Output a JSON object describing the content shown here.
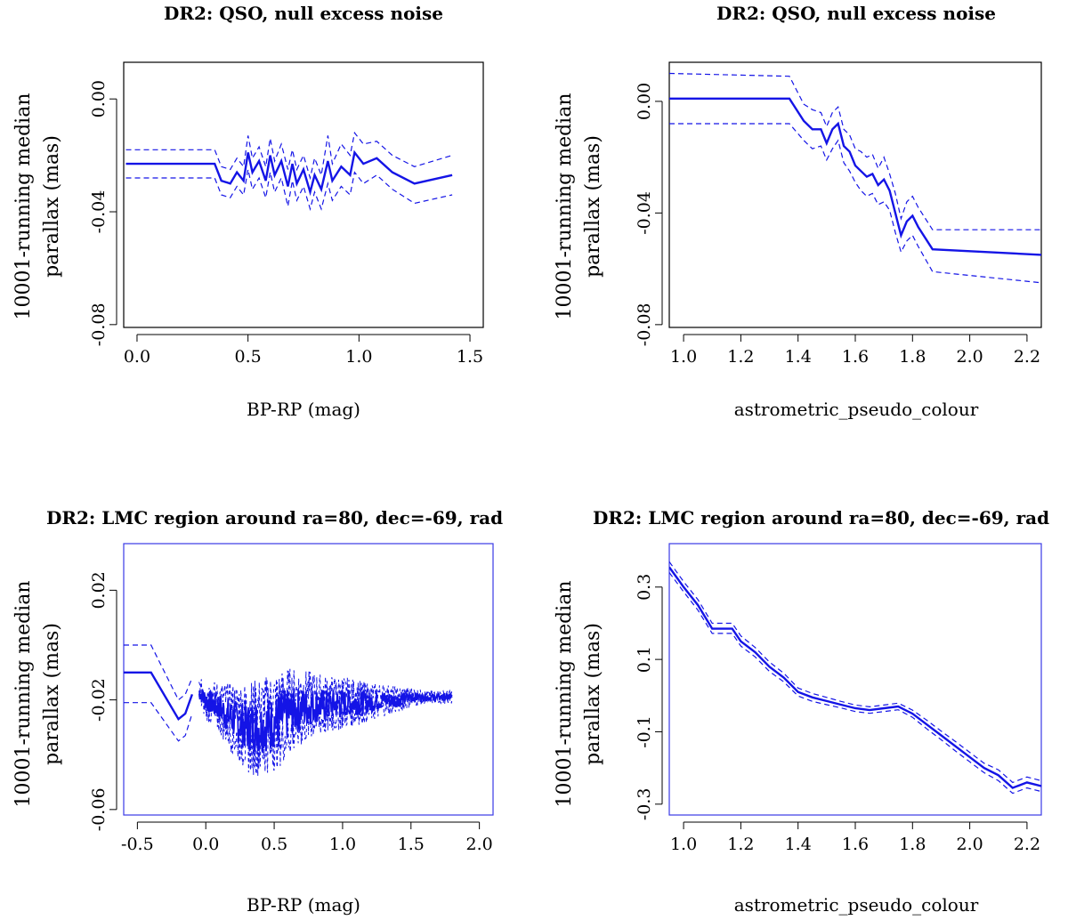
{
  "colors": {
    "series": "#1414e6",
    "frame_black": "#000000",
    "frame_blue": "#3a3ae6"
  },
  "chart_data": [
    {
      "type": "line",
      "title": "DR2: QSO, null excess noise",
      "xlabel": "BP-RP (mag)",
      "ylabel": [
        "10001-running median",
        "parallax (mas)"
      ],
      "xticks": [
        0.0,
        0.5,
        1.0,
        1.5
      ],
      "xtick_labels": [
        "0.0",
        "0.5",
        "1.0",
        "1.5"
      ],
      "yticks": [
        0.0,
        -0.04,
        -0.08
      ],
      "ytick_labels": [
        "0.00",
        "-0.04",
        "-0.08"
      ],
      "xlim": [
        -0.06,
        1.56
      ],
      "ylim": [
        -0.081,
        0.013
      ],
      "frame_color": "black",
      "series": [
        {
          "name": "median",
          "x": [
            -0.05,
            0.35,
            0.38,
            0.42,
            0.45,
            0.48,
            0.5,
            0.52,
            0.55,
            0.58,
            0.6,
            0.62,
            0.65,
            0.68,
            0.7,
            0.72,
            0.75,
            0.78,
            0.8,
            0.83,
            0.86,
            0.88,
            0.92,
            0.96,
            0.98,
            1.02,
            1.08,
            1.15,
            1.25,
            1.42
          ],
          "y": [
            -0.023,
            -0.023,
            -0.029,
            -0.03,
            -0.026,
            -0.029,
            -0.019,
            -0.026,
            -0.022,
            -0.029,
            -0.02,
            -0.027,
            -0.022,
            -0.031,
            -0.023,
            -0.03,
            -0.025,
            -0.033,
            -0.027,
            -0.032,
            -0.022,
            -0.029,
            -0.024,
            -0.027,
            -0.019,
            -0.023,
            -0.021,
            -0.026,
            -0.03,
            -0.027
          ]
        },
        {
          "name": "upper",
          "x": [
            -0.05,
            0.35,
            0.38,
            0.42,
            0.45,
            0.48,
            0.5,
            0.52,
            0.55,
            0.58,
            0.6,
            0.62,
            0.65,
            0.68,
            0.7,
            0.72,
            0.75,
            0.78,
            0.8,
            0.83,
            0.86,
            0.88,
            0.92,
            0.96,
            0.98,
            1.02,
            1.08,
            1.15,
            1.25,
            1.42
          ],
          "y": [
            -0.018,
            -0.018,
            -0.024,
            -0.025,
            -0.021,
            -0.024,
            -0.013,
            -0.021,
            -0.017,
            -0.024,
            -0.014,
            -0.022,
            -0.016,
            -0.025,
            -0.018,
            -0.025,
            -0.02,
            -0.028,
            -0.021,
            -0.027,
            -0.013,
            -0.023,
            -0.016,
            -0.02,
            -0.012,
            -0.016,
            -0.015,
            -0.02,
            -0.024,
            -0.02
          ]
        },
        {
          "name": "lower",
          "x": [
            -0.05,
            0.35,
            0.38,
            0.42,
            0.45,
            0.48,
            0.5,
            0.52,
            0.55,
            0.58,
            0.6,
            0.62,
            0.65,
            0.68,
            0.7,
            0.72,
            0.75,
            0.78,
            0.8,
            0.83,
            0.86,
            0.88,
            0.92,
            0.96,
            0.98,
            1.02,
            1.08,
            1.15,
            1.25,
            1.42
          ],
          "y": [
            -0.028,
            -0.028,
            -0.034,
            -0.035,
            -0.031,
            -0.034,
            -0.025,
            -0.032,
            -0.028,
            -0.035,
            -0.026,
            -0.033,
            -0.028,
            -0.038,
            -0.029,
            -0.036,
            -0.031,
            -0.039,
            -0.033,
            -0.039,
            -0.03,
            -0.036,
            -0.031,
            -0.034,
            -0.026,
            -0.03,
            -0.027,
            -0.032,
            -0.037,
            -0.034
          ]
        }
      ]
    },
    {
      "type": "line",
      "title": "DR2: QSO, null excess noise",
      "xlabel": "astrometric_pseudo_colour",
      "ylabel": [
        "10001-running median",
        "parallax (mas)"
      ],
      "xticks": [
        1.0,
        1.2,
        1.4,
        1.6,
        1.8,
        2.0,
        2.2
      ],
      "xtick_labels": [
        "1.0",
        "1.2",
        "1.4",
        "1.6",
        "1.8",
        "2.0",
        "2.2"
      ],
      "yticks": [
        0.0,
        -0.04,
        -0.08
      ],
      "ytick_labels": [
        "0.00",
        "-0.04",
        "-0.08"
      ],
      "xlim": [
        0.95,
        2.25
      ],
      "ylim": [
        -0.081,
        0.014
      ],
      "frame_color": "black",
      "series": [
        {
          "name": "median",
          "x": [
            0.95,
            1.37,
            1.42,
            1.45,
            1.48,
            1.5,
            1.52,
            1.54,
            1.56,
            1.58,
            1.6,
            1.62,
            1.64,
            1.66,
            1.68,
            1.7,
            1.72,
            1.74,
            1.76,
            1.78,
            1.8,
            1.82,
            1.87,
            2.25
          ],
          "y": [
            0.001,
            0.001,
            -0.007,
            -0.01,
            -0.01,
            -0.015,
            -0.01,
            -0.008,
            -0.016,
            -0.018,
            -0.023,
            -0.025,
            -0.027,
            -0.026,
            -0.03,
            -0.028,
            -0.032,
            -0.04,
            -0.048,
            -0.043,
            -0.041,
            -0.045,
            -0.053,
            -0.055
          ]
        },
        {
          "name": "upper",
          "x": [
            0.95,
            1.37,
            1.42,
            1.45,
            1.48,
            1.5,
            1.52,
            1.54,
            1.56,
            1.58,
            1.6,
            1.62,
            1.64,
            1.66,
            1.68,
            1.7,
            1.72,
            1.74,
            1.76,
            1.78,
            1.8,
            1.82,
            1.87,
            2.25
          ],
          "y": [
            0.01,
            0.009,
            -0.001,
            -0.003,
            -0.004,
            -0.009,
            -0.004,
            -0.002,
            -0.01,
            -0.012,
            -0.017,
            -0.018,
            -0.02,
            -0.019,
            -0.024,
            -0.02,
            -0.026,
            -0.033,
            -0.042,
            -0.036,
            -0.034,
            -0.038,
            -0.046,
            -0.046
          ]
        },
        {
          "name": "lower",
          "x": [
            0.95,
            1.37,
            1.42,
            1.45,
            1.48,
            1.5,
            1.52,
            1.54,
            1.56,
            1.58,
            1.6,
            1.62,
            1.64,
            1.66,
            1.68,
            1.7,
            1.72,
            1.74,
            1.76,
            1.78,
            1.8,
            1.82,
            1.87,
            2.25
          ],
          "y": [
            -0.008,
            -0.008,
            -0.014,
            -0.017,
            -0.016,
            -0.021,
            -0.017,
            -0.014,
            -0.022,
            -0.025,
            -0.029,
            -0.032,
            -0.034,
            -0.033,
            -0.037,
            -0.036,
            -0.039,
            -0.047,
            -0.054,
            -0.05,
            -0.048,
            -0.052,
            -0.061,
            -0.065
          ]
        }
      ]
    },
    {
      "type": "line",
      "title": "DR2: LMC region around ra=80, dec=-69, rad",
      "xlabel": "BP-RP (mag)",
      "ylabel": [
        "10001-running median",
        "parallax (mas)"
      ],
      "xticks": [
        -0.5,
        0.0,
        0.5,
        1.0,
        1.5,
        2.0
      ],
      "xtick_labels": [
        "-0.5",
        "0.0",
        "0.5",
        "1.0",
        "1.5",
        "2.0"
      ],
      "yticks": [
        0.02,
        -0.02,
        -0.06
      ],
      "ytick_labels": [
        "0.02",
        "-0.02",
        "-0.06"
      ],
      "xlim": [
        -0.6,
        2.1
      ],
      "ylim": [
        -0.062,
        0.037
      ],
      "frame_color": "blue",
      "noisy_region": {
        "x_range": [
          -0.05,
          1.8
        ],
        "center_profile": {
          "x": [
            -0.05,
            0.0,
            0.1,
            0.2,
            0.3,
            0.4,
            0.5,
            0.6,
            0.7,
            0.8,
            0.9,
            1.0,
            1.1,
            1.2,
            1.3,
            1.4,
            1.5,
            1.6,
            1.8
          ],
          "y": [
            -0.017,
            -0.02,
            -0.023,
            -0.027,
            -0.03,
            -0.03,
            -0.028,
            -0.025,
            -0.023,
            -0.022,
            -0.022,
            -0.021,
            -0.021,
            -0.021,
            -0.02,
            -0.02,
            -0.019,
            -0.019,
            -0.019
          ]
        },
        "spread": [
          0.004,
          0.006,
          0.008,
          0.011,
          0.014,
          0.015,
          0.015,
          0.014,
          0.012,
          0.01,
          0.009,
          0.008,
          0.007,
          0.006,
          0.005,
          0.004,
          0.003,
          0.002,
          0.002
        ]
      },
      "series": [
        {
          "name": "median",
          "x": [
            -0.6,
            -0.4,
            -0.2,
            -0.15,
            -0.1
          ],
          "y": [
            -0.01,
            -0.01,
            -0.027,
            -0.025,
            -0.018
          ]
        },
        {
          "name": "upper",
          "x": [
            -0.6,
            -0.4,
            -0.2,
            -0.15,
            -0.1
          ],
          "y": [
            0.0,
            0.0,
            -0.02,
            -0.018,
            -0.012
          ]
        },
        {
          "name": "lower",
          "x": [
            -0.6,
            -0.4,
            -0.2,
            -0.15,
            -0.1
          ],
          "y": [
            -0.021,
            -0.021,
            -0.035,
            -0.033,
            -0.025
          ]
        }
      ]
    },
    {
      "type": "line",
      "title": "DR2: LMC region around ra=80, dec=-69, rad",
      "xlabel": "astrometric_pseudo_colour",
      "ylabel": [
        "10001-running median",
        "parallax (mas)"
      ],
      "xticks": [
        1.0,
        1.2,
        1.4,
        1.6,
        1.8,
        2.0,
        2.2
      ],
      "xtick_labels": [
        "1.0",
        "1.2",
        "1.4",
        "1.6",
        "1.8",
        "2.0",
        "2.2"
      ],
      "yticks": [
        0.3,
        0.1,
        -0.1,
        -0.3
      ],
      "ytick_labels": [
        "0.3",
        "0.1",
        "-0.1",
        "-0.3"
      ],
      "xlim": [
        0.95,
        2.25
      ],
      "ylim": [
        -0.33,
        0.42
      ],
      "frame_color": "blue",
      "series": [
        {
          "name": "median",
          "x": [
            0.95,
            1.0,
            1.05,
            1.1,
            1.17,
            1.2,
            1.25,
            1.3,
            1.35,
            1.4,
            1.45,
            1.5,
            1.55,
            1.6,
            1.65,
            1.7,
            1.75,
            1.8,
            1.85,
            1.9,
            1.95,
            2.0,
            2.05,
            2.1,
            2.15,
            2.2,
            2.25
          ],
          "y": [
            0.355,
            0.3,
            0.25,
            0.185,
            0.185,
            0.15,
            0.12,
            0.08,
            0.05,
            0.01,
            -0.005,
            -0.015,
            -0.025,
            -0.035,
            -0.04,
            -0.035,
            -0.03,
            -0.05,
            -0.08,
            -0.11,
            -0.14,
            -0.17,
            -0.2,
            -0.22,
            -0.255,
            -0.24,
            -0.25
          ]
        },
        {
          "name": "upper",
          "x": [
            0.95,
            1.0,
            1.05,
            1.1,
            1.17,
            1.2,
            1.25,
            1.3,
            1.35,
            1.4,
            1.45,
            1.5,
            1.55,
            1.6,
            1.65,
            1.7,
            1.75,
            1.8,
            1.85,
            1.9,
            1.95,
            2.0,
            2.05,
            2.1,
            2.15,
            2.2,
            2.25
          ],
          "y": [
            0.37,
            0.315,
            0.265,
            0.2,
            0.2,
            0.165,
            0.133,
            0.093,
            0.062,
            0.021,
            0.006,
            -0.005,
            -0.016,
            -0.026,
            -0.031,
            -0.026,
            -0.021,
            -0.04,
            -0.068,
            -0.098,
            -0.127,
            -0.157,
            -0.187,
            -0.205,
            -0.24,
            -0.225,
            -0.235
          ]
        },
        {
          "name": "lower",
          "x": [
            0.95,
            1.0,
            1.05,
            1.1,
            1.17,
            1.2,
            1.25,
            1.3,
            1.35,
            1.4,
            1.45,
            1.5,
            1.55,
            1.6,
            1.65,
            1.7,
            1.75,
            1.8,
            1.85,
            1.9,
            1.95,
            2.0,
            2.05,
            2.1,
            2.15,
            2.2,
            2.25
          ],
          "y": [
            0.34,
            0.287,
            0.236,
            0.172,
            0.172,
            0.137,
            0.107,
            0.067,
            0.038,
            -0.001,
            -0.016,
            -0.025,
            -0.034,
            -0.044,
            -0.049,
            -0.044,
            -0.039,
            -0.06,
            -0.092,
            -0.122,
            -0.153,
            -0.183,
            -0.213,
            -0.235,
            -0.27,
            -0.255,
            -0.265
          ]
        }
      ]
    }
  ]
}
